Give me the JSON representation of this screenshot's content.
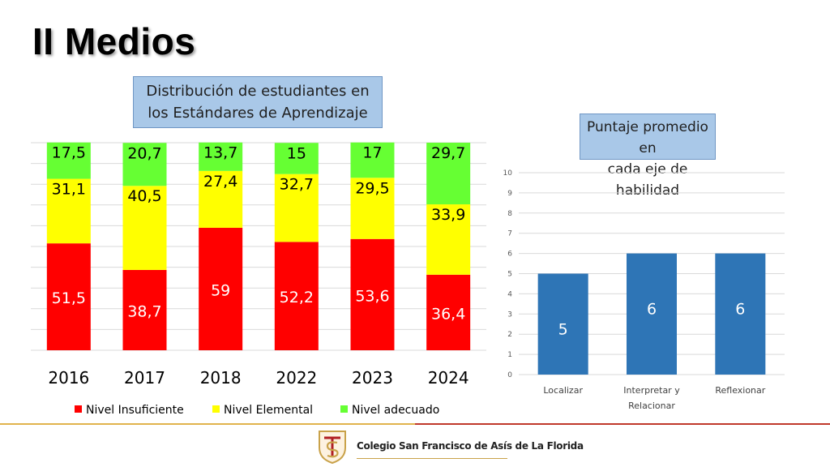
{
  "slide": {
    "title": "II Medios",
    "school": "Colegio San Francisco de Asís de La Florida",
    "colors": {
      "insuficiente": "#ff0000",
      "elemental": "#ffff00",
      "adecuado": "#66ff33",
      "avg_bar": "#2e75b6",
      "title_box": "#a9c8e8"
    }
  },
  "chart_data": [
    {
      "type": "bar",
      "stacked": true,
      "title_lines": [
        "Distribución de estudiantes en",
        "los Estándares de Aprendizaje"
      ],
      "categories": [
        "2016",
        "2017",
        "2018",
        "2022",
        "2023",
        "2024"
      ],
      "series": [
        {
          "name": "Nivel Insuficiente",
          "color": "#ff0000",
          "values": [
            51.5,
            38.7,
            59,
            52.2,
            53.6,
            36.4
          ],
          "labels": [
            "51,5",
            "38,7",
            "59",
            "52,2",
            "53,6",
            "36,4"
          ]
        },
        {
          "name": "Nivel Elemental",
          "color": "#ffff00",
          "values": [
            31.1,
            40.5,
            27.4,
            32.7,
            29.5,
            33.9
          ],
          "labels": [
            "31,1",
            "40,5",
            "27,4",
            "32,7",
            "29,5",
            "33,9"
          ]
        },
        {
          "name": "Nivel adecuado",
          "color": "#66ff33",
          "values": [
            17.5,
            20.7,
            13.7,
            15,
            17,
            29.7
          ],
          "labels": [
            "17,5",
            "20,7",
            "13,7",
            "15",
            "17",
            "29,7"
          ]
        }
      ],
      "ylim": [
        0,
        100
      ],
      "grid": true,
      "legend": "bottom"
    },
    {
      "type": "bar",
      "title_lines": [
        "Puntaje promedio en",
        "cada eje de habilidad"
      ],
      "categories": [
        [
          "Localizar"
        ],
        [
          "Interpretar y",
          "Relacionar"
        ],
        [
          "Reflexionar"
        ]
      ],
      "values": [
        5,
        6,
        6
      ],
      "labels": [
        "5",
        "6",
        "6"
      ],
      "yticks": [
        "0",
        "1",
        "2",
        "3",
        "4",
        "5",
        "6",
        "7",
        "8",
        "9",
        "10"
      ],
      "ylim": [
        0,
        10
      ],
      "grid": true,
      "color": "#2e75b6"
    }
  ]
}
